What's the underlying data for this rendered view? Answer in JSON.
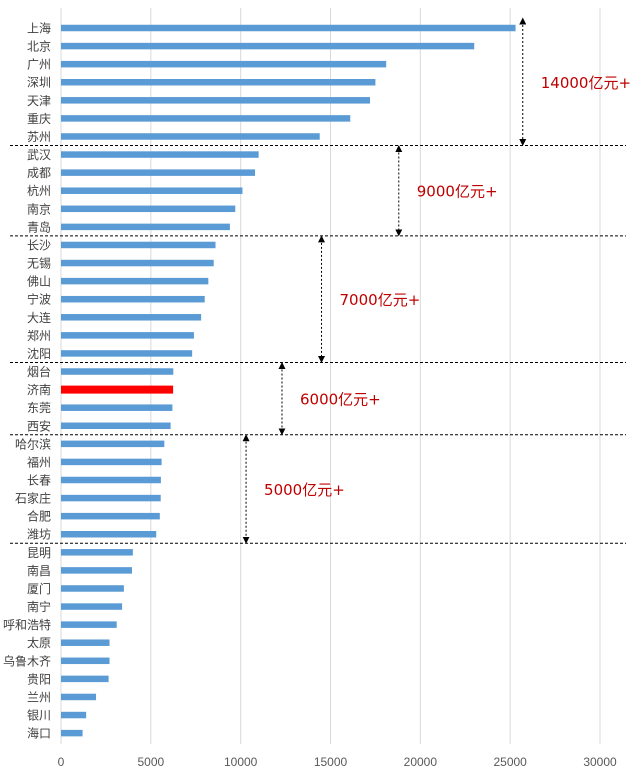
{
  "chart_data": {
    "type": "bar",
    "orientation": "horizontal",
    "categories": [
      "上海",
      "北京",
      "广州",
      "深圳",
      "天津",
      "重庆",
      "苏州",
      "武汉",
      "成都",
      "杭州",
      "南京",
      "青岛",
      "长沙",
      "无锡",
      "佛山",
      "宁波",
      "大连",
      "郑州",
      "沈阳",
      "烟台",
      "济南",
      "东莞",
      "西安",
      "哈尔滨",
      "福州",
      "长春",
      "石家庄",
      "合肥",
      "潍坊",
      "昆明",
      "南昌",
      "厦门",
      "南宁",
      "呼和浩特",
      "太原",
      "乌鲁木齐",
      "贵阳",
      "兰州",
      "银川",
      "海口"
    ],
    "values": [
      25300,
      23000,
      18100,
      17500,
      17200,
      16100,
      14400,
      11000,
      10800,
      10100,
      9700,
      9400,
      8600,
      8500,
      8200,
      8000,
      7800,
      7400,
      7300,
      6250,
      6240,
      6200,
      6100,
      5750,
      5600,
      5560,
      5550,
      5500,
      5300,
      4000,
      3950,
      3500,
      3400,
      3100,
      2700,
      2700,
      2650,
      1950,
      1400,
      1200
    ],
    "highlight_category": "济南",
    "xlim": [
      0,
      30000
    ],
    "x_ticks": [
      "0",
      "5000",
      "10000",
      "15000",
      "20000",
      "25000",
      "30000"
    ],
    "grid": "vertical",
    "colors": {
      "bar": "#5b9bd5",
      "highlight": "#ff0000",
      "annotation": "#c00000",
      "grid": "#d9d9d9",
      "divider": "#000000"
    },
    "bands": [
      {
        "label": "14000亿元+",
        "from_index": 0,
        "to_index": 6,
        "arrow_x": 25700
      },
      {
        "label": "9000亿元+",
        "from_index": 7,
        "to_index": 11,
        "arrow_x": 18800
      },
      {
        "label": "7000亿元+",
        "from_index": 12,
        "to_index": 18,
        "arrow_x": 14500
      },
      {
        "label": "6000亿元+",
        "from_index": 19,
        "to_index": 22,
        "arrow_x": 12300
      },
      {
        "label": "5000亿元+",
        "from_index": 23,
        "to_index": 28,
        "arrow_x": 10300
      }
    ]
  }
}
